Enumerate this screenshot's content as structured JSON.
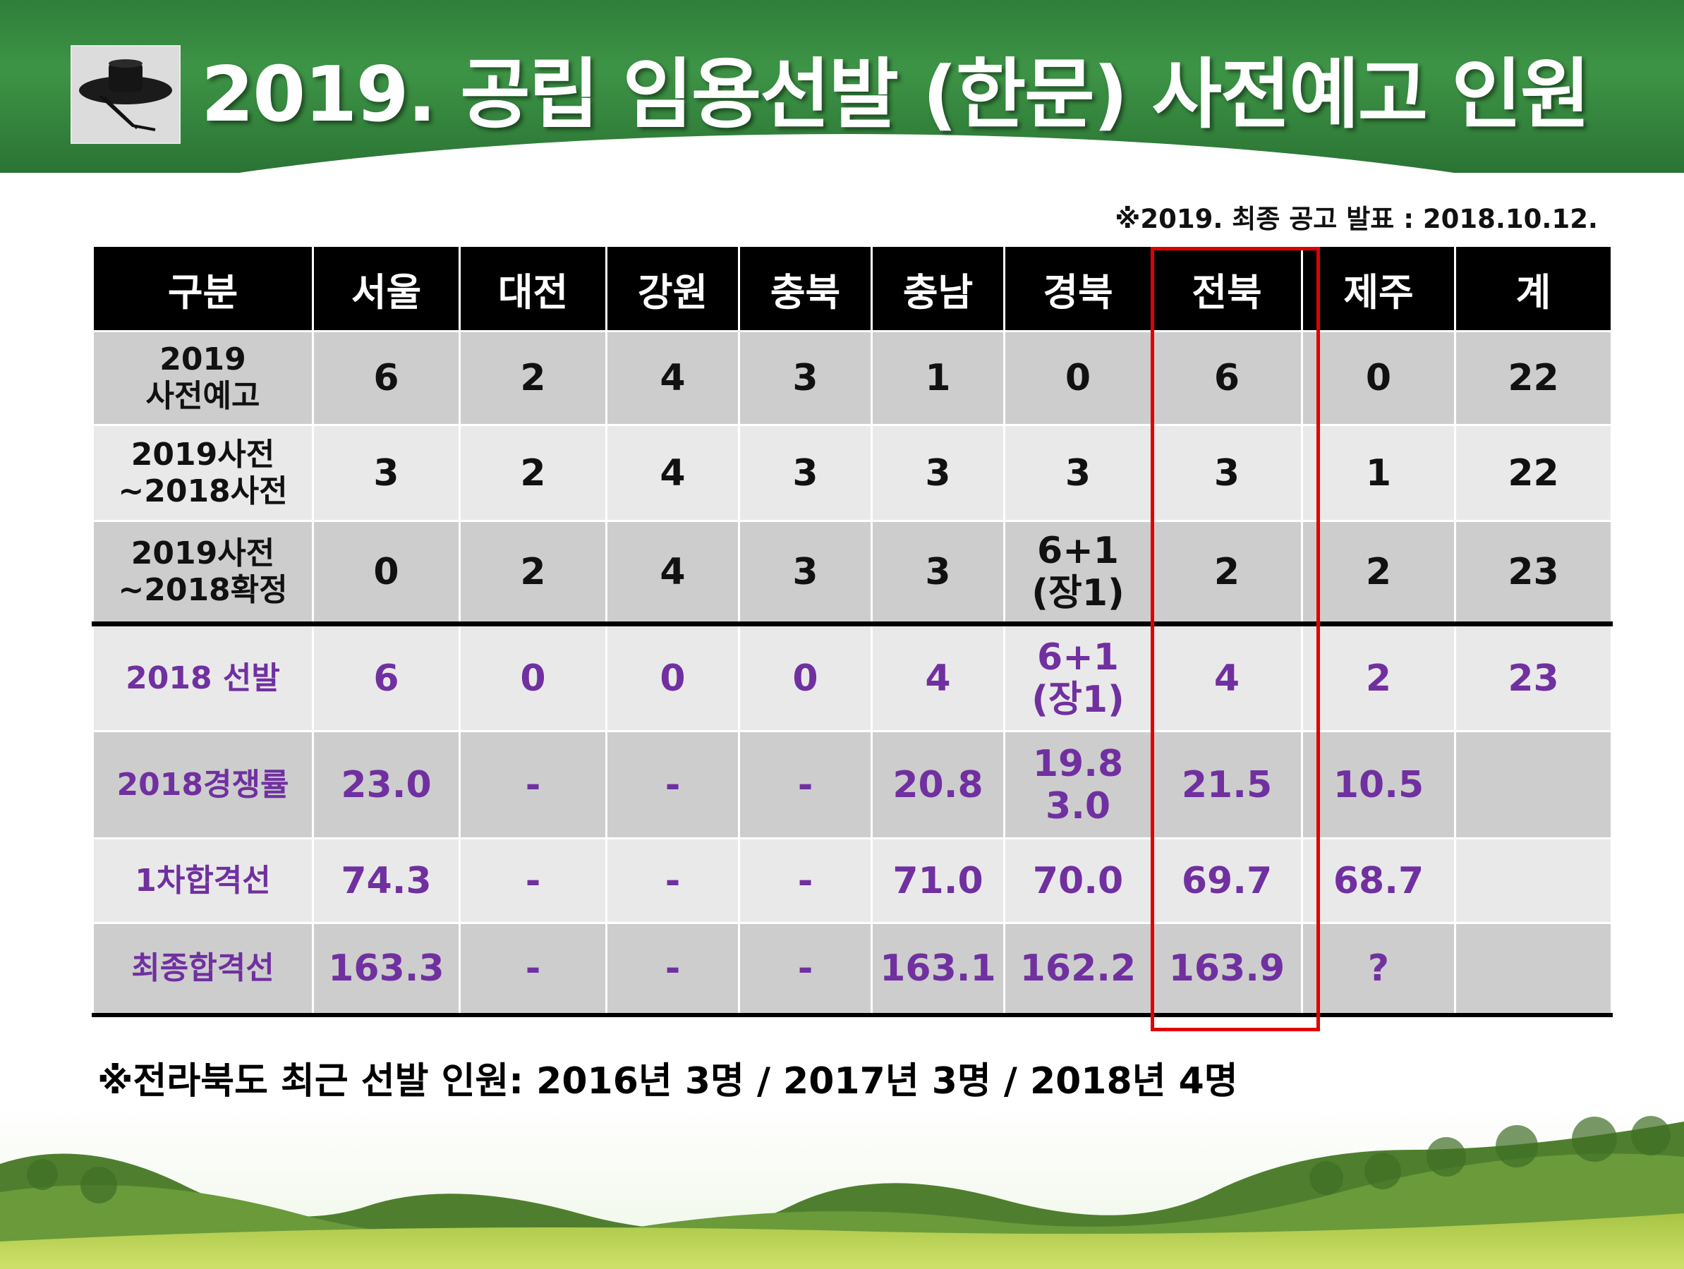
{
  "title": "2019. 공립 임용선발 (한문) 사전예고 인원",
  "notice_top": "※2019. 최종 공고 발표 : 2018.10.12.",
  "table": {
    "headers": [
      "구분",
      "서울",
      "대전",
      "강원",
      "충북",
      "충남",
      "경북",
      "전북",
      "제주",
      "계"
    ],
    "rows": [
      {
        "label": [
          "2019",
          "사전예고"
        ],
        "cells": [
          "6",
          "2",
          "4",
          "3",
          "1",
          "0",
          "6",
          "0",
          "22"
        ]
      },
      {
        "label": [
          "2019사전",
          "~2018사전"
        ],
        "cells": [
          "3",
          "2",
          "4",
          "3",
          "3",
          "3",
          "3",
          "1",
          "22"
        ]
      },
      {
        "label": [
          "2019사전",
          "~2018확정"
        ],
        "cells": [
          "0",
          "2",
          "4",
          "3",
          "3",
          [
            "6+1",
            "(장1)"
          ],
          "2",
          "2",
          "23"
        ]
      },
      {
        "label": [
          "2018 선발"
        ],
        "cells": [
          "6",
          "0",
          "0",
          "0",
          "4",
          [
            "6+1",
            "(장1)"
          ],
          "4",
          "2",
          "23"
        ]
      },
      {
        "label": [
          "2018경쟁률"
        ],
        "cells": [
          "23.0",
          "-",
          "-",
          "-",
          "20.8",
          [
            "19.8",
            "3.0"
          ],
          "21.5",
          "10.5",
          ""
        ]
      },
      {
        "label": [
          "1차합격선"
        ],
        "cells": [
          "74.3",
          "-",
          "-",
          "-",
          "71.0",
          "70.0",
          "69.7",
          "68.7",
          ""
        ]
      },
      {
        "label": [
          "최종합격선"
        ],
        "cells": [
          "163.3",
          "-",
          "-",
          "-",
          "163.1",
          "162.2",
          "163.9",
          "?",
          ""
        ]
      }
    ]
  },
  "notice_bottom": "※전라북도 최근 선발 인원: 2016년 3명 / 2017년 3명 / 2018년 4명",
  "colors": {
    "header_green": "#2f7e3a",
    "table_header_bg": "#000000",
    "row_dark": "#cdcdcd",
    "row_light": "#e9e9e9",
    "purple_text": "#7030a0",
    "highlight_red": "#e00000"
  },
  "icons": {
    "logo": "gat-hat-icon"
  }
}
